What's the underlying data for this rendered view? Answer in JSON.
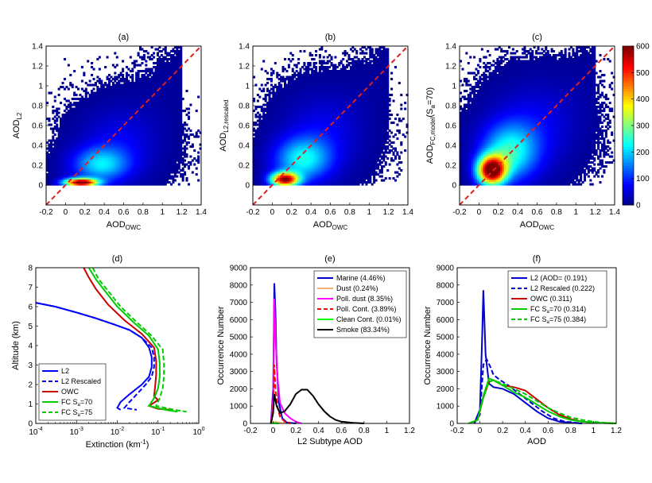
{
  "colorbar": {
    "ticks": [
      0,
      100,
      200,
      300,
      400,
      500,
      600
    ],
    "colors": [
      "#00008f",
      "#0000ff",
      "#0080ff",
      "#00ffff",
      "#80ff80",
      "#ffff00",
      "#ff8000",
      "#ff0000",
      "#800000"
    ]
  },
  "chart_data": [
    {
      "type": "heatmap",
      "panel": "(a)",
      "title": "(a)",
      "xlabel": "AOD",
      "xlabel_sub": "OWC",
      "ylabel": "AOD",
      "ylabel_sub": "L2",
      "xlim": [
        -0.2,
        1.4
      ],
      "ylim": [
        -0.2,
        1.4
      ],
      "xticks": [
        "-0.2",
        "0",
        "0.2",
        "0.4",
        "0.6",
        "0.8",
        "1",
        "1.2",
        "1.4"
      ],
      "yticks": [
        "0",
        "0.2",
        "0.4",
        "0.6",
        "0.8",
        "1",
        "1.2",
        "1.4"
      ],
      "yticks_values": [
        0,
        0.2,
        0.4,
        0.6,
        0.8,
        1,
        1.2,
        1.4
      ],
      "one_to_one_line": true,
      "density": {
        "ridges": [
          {
            "x": 0.15,
            "y": 0.02,
            "sx": 0.12,
            "sy": 0.03,
            "peak": 600
          },
          {
            "x": 0.35,
            "y": 0.2,
            "sx": 0.2,
            "sy": 0.12,
            "peak": 180
          },
          {
            "x": 0.55,
            "y": 0.4,
            "sx": 0.28,
            "sy": 0.25,
            "peak": 60
          }
        ]
      }
    },
    {
      "type": "heatmap",
      "panel": "(b)",
      "title": "(b)",
      "xlabel": "AOD",
      "xlabel_sub": "OWC",
      "ylabel": "AOD",
      "ylabel_sub": "L2,rescaled",
      "xlim": [
        -0.2,
        1.4
      ],
      "ylim": [
        -0.2,
        1.4
      ],
      "xticks": [
        "-0.2",
        "0",
        "0.2",
        "0.4",
        "0.6",
        "0.8",
        "1",
        "1.2",
        "1.4"
      ],
      "yticks": [
        "0",
        "0.2",
        "0.4",
        "0.6",
        "0.8",
        "1",
        "1.2",
        "1.4"
      ],
      "yticks_values": [
        0,
        0.2,
        0.4,
        0.6,
        0.8,
        1,
        1.2,
        1.4
      ],
      "one_to_one_line": true,
      "density": {
        "ridges": [
          {
            "x": 0.12,
            "y": 0.05,
            "sx": 0.1,
            "sy": 0.05,
            "peak": 550
          },
          {
            "x": 0.3,
            "y": 0.25,
            "sx": 0.2,
            "sy": 0.15,
            "peak": 200
          },
          {
            "x": 0.5,
            "y": 0.5,
            "sx": 0.28,
            "sy": 0.28,
            "peak": 60
          }
        ]
      }
    },
    {
      "type": "heatmap",
      "panel": "(c)",
      "title": "(c)",
      "xlabel": "AOD",
      "xlabel_sub": "OWC",
      "ylabel": "AOD",
      "ylabel_sub": "FC,model",
      "ylabel_suffix": "(S",
      "ylabel_suffix_sub": "a",
      "ylabel_suffix_end": "=70)",
      "xlim": [
        -0.2,
        1.4
      ],
      "ylim": [
        -0.2,
        1.4
      ],
      "xticks": [
        "-0.2",
        "0",
        "0.2",
        "0.4",
        "0.6",
        "0.8",
        "1",
        "1.2",
        "1.4"
      ],
      "yticks": [
        "0",
        "0.2",
        "0.4",
        "0.6",
        "0.8",
        "1",
        "1.2",
        "1.4"
      ],
      "yticks_values": [
        0,
        0.2,
        0.4,
        0.6,
        0.8,
        1,
        1.2,
        1.4
      ],
      "one_to_one_line": true,
      "colorbar": true,
      "density": {
        "ridges": [
          {
            "x": 0.12,
            "y": 0.14,
            "sx": 0.1,
            "sy": 0.1,
            "peak": 600
          },
          {
            "x": 0.3,
            "y": 0.32,
            "sx": 0.2,
            "sy": 0.2,
            "peak": 220
          },
          {
            "x": 0.55,
            "y": 0.58,
            "sx": 0.3,
            "sy": 0.3,
            "peak": 60
          }
        ]
      }
    },
    {
      "type": "line",
      "panel": "(d)",
      "title": "(d)",
      "xlabel": "Extinction (km",
      "xlabel_sup": "-1",
      "xlabel_end": ")",
      "ylabel": "Altitude (km)",
      "xscale": "log",
      "xlim": [
        0.0001,
        1
      ],
      "ylim": [
        0,
        8
      ],
      "xticks": [
        {
          "base": "10",
          "exp": "-4"
        },
        {
          "base": "10",
          "exp": "-3"
        },
        {
          "base": "10",
          "exp": "-2"
        },
        {
          "base": "10",
          "exp": "-1"
        },
        {
          "base": "10",
          "exp": "0"
        }
      ],
      "yticks": [
        "0",
        "1",
        "2",
        "3",
        "4",
        "5",
        "6",
        "7",
        "8"
      ],
      "legend": [
        {
          "label": "L2",
          "color": "#0000ff",
          "dash": "solid"
        },
        {
          "label": "L2 Rescaled",
          "color": "#0000ff",
          "dash": "dashed"
        },
        {
          "label": "OWC",
          "color": "#cc0000",
          "dash": "solid"
        },
        {
          "label": "FC S",
          "sub": "a",
          "end": "=70",
          "color": "#00cc00",
          "dash": "solid"
        },
        {
          "label": "FC S",
          "sub": "a",
          "end": "=75",
          "color": "#00cc00",
          "dash": "dashed"
        }
      ],
      "series": [
        {
          "name": "L2",
          "color": "#0000ff",
          "dash": "solid",
          "x": [
            0.0001,
            0.0003,
            0.001,
            0.003,
            0.008,
            0.02,
            0.04,
            0.06,
            0.07,
            0.07,
            0.06,
            0.04,
            0.02,
            0.012,
            0.01,
            0.012
          ],
          "y": [
            6.2,
            6.0,
            5.7,
            5.4,
            5.1,
            4.8,
            4.4,
            3.9,
            3.4,
            2.9,
            2.4,
            2.0,
            1.5,
            1.1,
            0.8,
            0.7
          ]
        },
        {
          "name": "L2 Rescaled",
          "color": "#0000ff",
          "dash": "dashed",
          "x": [
            0.0001,
            0.0003,
            0.001,
            0.003,
            0.008,
            0.02,
            0.04,
            0.07,
            0.08,
            0.08,
            0.07,
            0.05,
            0.03,
            0.02,
            0.015,
            0.03
          ],
          "y": [
            6.2,
            6.0,
            5.7,
            5.4,
            5.1,
            4.8,
            4.4,
            3.9,
            3.4,
            2.9,
            2.4,
            2.0,
            1.5,
            1.1,
            0.8,
            0.7
          ]
        },
        {
          "name": "OWC",
          "color": "#cc0000",
          "dash": "solid",
          "x": [
            0.0015,
            0.002,
            0.003,
            0.006,
            0.015,
            0.04,
            0.08,
            0.09,
            0.09,
            0.085,
            0.08,
            0.1,
            0.06,
            0.1,
            0.2
          ],
          "y": [
            8,
            7.5,
            6.9,
            6.1,
            5.3,
            4.6,
            3.9,
            3.2,
            2.5,
            1.9,
            1.4,
            1.2,
            0.9,
            0.75,
            0.7
          ]
        },
        {
          "name": "FC Sa=70",
          "color": "#00cc00",
          "dash": "solid",
          "x": [
            0.002,
            0.003,
            0.005,
            0.01,
            0.025,
            0.06,
            0.1,
            0.11,
            0.11,
            0.1,
            0.08,
            0.06,
            0.15,
            0.3
          ],
          "y": [
            8,
            7.4,
            6.8,
            6.0,
            5.2,
            4.5,
            3.8,
            3.1,
            2.4,
            1.8,
            1.3,
            0.9,
            0.7,
            0.6
          ]
        },
        {
          "name": "FC Sa=75",
          "color": "#00cc00",
          "dash": "dashed",
          "x": [
            0.0025,
            0.0035,
            0.006,
            0.012,
            0.03,
            0.07,
            0.13,
            0.14,
            0.14,
            0.13,
            0.11,
            0.09,
            0.25,
            0.5
          ],
          "y": [
            8,
            7.4,
            6.8,
            6.0,
            5.2,
            4.5,
            3.8,
            3.1,
            2.4,
            1.8,
            1.3,
            0.9,
            0.7,
            0.6
          ]
        }
      ]
    },
    {
      "type": "line",
      "panel": "(e)",
      "title": "(e)",
      "xlabel": "L2 Subtype AOD",
      "ylabel": "Occurrence Number",
      "xlim": [
        -0.2,
        1.2
      ],
      "ylim": [
        0,
        9000
      ],
      "xticks": [
        "-0.2",
        "0",
        "0.2",
        "0.4",
        "0.6",
        "0.8",
        "1",
        "1.2"
      ],
      "yticks": [
        "0",
        "1000",
        "2000",
        "3000",
        "4000",
        "5000",
        "6000",
        "7000",
        "8000",
        "9000"
      ],
      "legend": [
        {
          "label": "Marine (4.46%)",
          "color": "#0000cc",
          "dash": "solid"
        },
        {
          "label": "Dust (0.24%)",
          "color": "#f0b070",
          "dash": "solid"
        },
        {
          "label": "Poll. dust (8.35%)",
          "color": "#ff00ff",
          "dash": "solid"
        },
        {
          "label": "Poll. Cont. (3.89%)",
          "color": "#ff0000",
          "dash": "dashed"
        },
        {
          "label": "Clean Cont. (0.01%)",
          "color": "#00ff00",
          "dash": "solid"
        },
        {
          "label": "Smoke (83.34%)",
          "color": "#000000",
          "dash": "solid"
        }
      ],
      "series": [
        {
          "name": "Marine (4.46%)",
          "color": "#0000cc",
          "dash": "solid",
          "x": [
            -0.02,
            0.0,
            0.01,
            0.02,
            0.03,
            0.05,
            0.08,
            0.12,
            0.2
          ],
          "y": [
            0,
            2000,
            8100,
            6500,
            3500,
            1200,
            300,
            50,
            0
          ]
        },
        {
          "name": "Dust (0.24%)",
          "color": "#f0b070",
          "dash": "solid",
          "x": [
            -0.02,
            0.0,
            0.02,
            0.05,
            0.1
          ],
          "y": [
            0,
            50,
            100,
            40,
            0
          ]
        },
        {
          "name": "Poll. dust (8.35%)",
          "color": "#ff00ff",
          "dash": "solid",
          "x": [
            -0.02,
            0.0,
            0.01,
            0.02,
            0.04,
            0.06,
            0.1,
            0.15,
            0.2,
            0.25
          ],
          "y": [
            0,
            1500,
            7200,
            5000,
            2500,
            1200,
            600,
            300,
            100,
            0
          ]
        },
        {
          "name": "Poll. Cont. (3.89%)",
          "color": "#ff0000",
          "dash": "dashed",
          "x": [
            -0.02,
            0.0,
            0.01,
            0.02,
            0.04,
            0.06,
            0.1,
            0.15
          ],
          "y": [
            0,
            1000,
            3400,
            2000,
            900,
            400,
            100,
            0
          ]
        },
        {
          "name": "Clean Cont. (0.01%)",
          "color": "#00ff00",
          "dash": "solid",
          "x": [
            -0.02,
            0.0,
            0.02,
            0.05
          ],
          "y": [
            0,
            20,
            10,
            0
          ]
        },
        {
          "name": "Smoke (83.34%)",
          "color": "#000000",
          "dash": "solid",
          "x": [
            -0.02,
            0.0,
            0.01,
            0.03,
            0.06,
            0.1,
            0.15,
            0.2,
            0.25,
            0.3,
            0.35,
            0.4,
            0.45,
            0.5,
            0.55,
            0.6,
            0.7,
            0.8
          ],
          "y": [
            0,
            600,
            1700,
            1000,
            600,
            700,
            1100,
            1700,
            1950,
            1950,
            1600,
            1100,
            700,
            400,
            200,
            100,
            30,
            0
          ]
        }
      ]
    },
    {
      "type": "line",
      "panel": "(f)",
      "title": "(f)",
      "xlabel": "AOD",
      "ylabel": "Occurrence Number",
      "xlim": [
        -0.2,
        1.2
      ],
      "ylim": [
        0,
        9000
      ],
      "xticks": [
        "-0.2",
        "0",
        "0.2",
        "0.4",
        "0.6",
        "0.8",
        "1",
        "1.2"
      ],
      "yticks": [
        "0",
        "1000",
        "2000",
        "3000",
        "4000",
        "5000",
        "6000",
        "7000",
        "8000",
        "9000"
      ],
      "legend": [
        {
          "label": "L2 (AOD= (0.191)",
          "color": "#0000cc",
          "dash": "solid"
        },
        {
          "label": "L2 Rescaled (0.222)",
          "color": "#0000cc",
          "dash": "dashed"
        },
        {
          "label": "OWC (0.311)",
          "color": "#cc0000",
          "dash": "solid"
        },
        {
          "label": "FC S",
          "sub": "a",
          "end": "=70 (0.314)",
          "color": "#00cc00",
          "dash": "solid"
        },
        {
          "label": "FC S",
          "sub": "a",
          "end": "=75 (0.384)",
          "color": "#00cc00",
          "dash": "dashed"
        }
      ],
      "series": [
        {
          "name": "L2",
          "color": "#0000cc",
          "dash": "solid",
          "x": [
            -0.05,
            0.0,
            0.02,
            0.03,
            0.05,
            0.08,
            0.12,
            0.2,
            0.3,
            0.4,
            0.5,
            0.6,
            0.7,
            0.8,
            0.9
          ],
          "y": [
            0,
            800,
            5000,
            7700,
            4000,
            2300,
            2100,
            2000,
            1700,
            1200,
            700,
            300,
            100,
            30,
            0
          ]
        },
        {
          "name": "L2 Rescaled",
          "color": "#0000cc",
          "dash": "dashed",
          "x": [
            -0.05,
            0.0,
            0.03,
            0.06,
            0.09,
            0.12,
            0.18,
            0.25,
            0.35,
            0.45,
            0.55,
            0.65,
            0.75,
            0.9
          ],
          "y": [
            0,
            500,
            3400,
            3700,
            3300,
            2800,
            2500,
            2200,
            1700,
            1200,
            700,
            300,
            100,
            0
          ]
        },
        {
          "name": "OWC",
          "color": "#cc0000",
          "dash": "solid",
          "x": [
            -0.1,
            -0.02,
            0.03,
            0.08,
            0.12,
            0.2,
            0.3,
            0.4,
            0.5,
            0.6,
            0.7,
            0.8,
            0.9,
            1.0,
            1.1,
            1.2
          ],
          "y": [
            0,
            200,
            1500,
            2400,
            2500,
            2200,
            2100,
            1900,
            1400,
            900,
            500,
            250,
            100,
            50,
            20,
            0
          ]
        },
        {
          "name": "FC Sa=70",
          "color": "#00cc00",
          "dash": "solid",
          "x": [
            -0.1,
            -0.02,
            0.03,
            0.08,
            0.12,
            0.2,
            0.3,
            0.4,
            0.5,
            0.6,
            0.7,
            0.8,
            0.9,
            1.0,
            1.1,
            1.2
          ],
          "y": [
            0,
            200,
            1600,
            2600,
            2500,
            2200,
            1800,
            1500,
            1100,
            700,
            400,
            200,
            100,
            50,
            20,
            0
          ]
        },
        {
          "name": "FC Sa=75",
          "color": "#00cc00",
          "dash": "dashed",
          "x": [
            -0.1,
            -0.02,
            0.03,
            0.08,
            0.12,
            0.2,
            0.3,
            0.4,
            0.5,
            0.6,
            0.7,
            0.8,
            0.9,
            1.0,
            1.1,
            1.2
          ],
          "y": [
            0,
            200,
            1500,
            2400,
            2500,
            2300,
            2000,
            1700,
            1300,
            900,
            600,
            350,
            200,
            100,
            40,
            0
          ]
        }
      ]
    }
  ]
}
